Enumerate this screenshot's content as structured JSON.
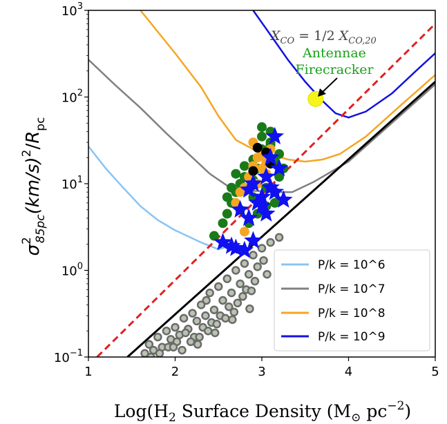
{
  "chart_data": {
    "type": "scatter",
    "xscale": "linear",
    "yscale": "log",
    "xlim": [
      1,
      5
    ],
    "ylim": [
      0.1,
      1000
    ],
    "xticks": [
      {
        "value": 1,
        "label": "1"
      },
      {
        "value": 2,
        "label": "2"
      },
      {
        "value": 3,
        "label": "3"
      },
      {
        "value": 4,
        "label": "4"
      },
      {
        "value": 5,
        "label": "5"
      }
    ],
    "yticks": [
      {
        "value": 0.1,
        "base": "10",
        "exp": "−1"
      },
      {
        "value": 1,
        "base": "10",
        "exp": "0"
      },
      {
        "value": 10,
        "base": "10",
        "exp": "1"
      },
      {
        "value": 100,
        "base": "10",
        "exp": "2"
      },
      {
        "value": 1000,
        "base": "10",
        "exp": "3"
      }
    ],
    "xlabel": {
      "pre": "Log(H",
      "sub1": "2",
      "mid": " Surface Density (M",
      "sub2": "⊙",
      "mid2": " pc",
      "sup": "−2",
      "post": ")"
    },
    "ylabel": {
      "sigma": "σ",
      "sup": "2",
      "sub": "85pc",
      "mid": "(km/s)",
      "sup2": "2",
      "slash": "/",
      "R": "R",
      "rsub": "pc"
    },
    "legend": {
      "position": "lower-right",
      "entries": [
        {
          "label": "P/k = 10^6",
          "color": "#89c4f4"
        },
        {
          "label": "P/k = 10^7",
          "color": "#808080"
        },
        {
          "label": "P/k = 10^8",
          "color": "#f5a623"
        },
        {
          "label": "P/k = 10^9",
          "color": "#1212e0"
        }
      ]
    },
    "annotations": {
      "formula": "X_CO = 1/2 X_CO,20",
      "formula_parts": {
        "x": "X",
        "sub1": "CO",
        "eq": " = 1/2 ",
        "x2": "X",
        "sub2": "CO,20"
      },
      "label_line1": "Antennae",
      "label_line2": "Firecracker",
      "highlight_point": [
        3.62,
        95
      ]
    },
    "lines": {
      "black_fit": {
        "color": "#000000",
        "x": [
          1.45,
          5.0
        ],
        "y": [
          0.1,
          150
        ]
      },
      "red_dashed": {
        "color": "#e02020",
        "x": [
          1.1,
          5.0
        ],
        "y": [
          0.1,
          700
        ]
      }
    },
    "pressure_curves": [
      {
        "name": "P/k = 10^6",
        "color": "#89c4f4",
        "x": [
          1.0,
          1.2,
          1.4,
          1.6,
          1.8,
          2.0,
          2.05,
          2.3,
          2.5,
          2.7
        ],
        "y": [
          27,
          15,
          9,
          5.5,
          3.8,
          2.9,
          2.75,
          2.1,
          1.75,
          2.0
        ]
      },
      {
        "name": "P/k = 10^7",
        "color": "#808080",
        "x": [
          1.0,
          1.3,
          1.6,
          1.9,
          2.2,
          2.4,
          2.6,
          2.8,
          3.0,
          3.2,
          3.35,
          3.6,
          4.0,
          5.0
        ],
        "y": [
          270,
          140,
          75,
          38,
          20,
          13,
          9.5,
          8.3,
          8.2,
          8.0,
          8.0,
          10.5,
          18,
          140
        ]
      },
      {
        "name": "P/k = 10^8",
        "color": "#f5a623",
        "x": [
          1.6,
          2.0,
          2.3,
          2.5,
          2.7,
          2.9,
          3.1,
          3.3,
          3.5,
          3.7,
          3.9,
          4.2,
          4.6,
          5.0
        ],
        "y": [
          1000,
          320,
          130,
          60,
          32,
          25,
          22,
          19,
          18,
          19,
          22,
          35,
          80,
          180
        ]
      },
      {
        "name": "P/k = 10^9",
        "color": "#1212e0",
        "x": [
          2.9,
          3.1,
          3.3,
          3.5,
          3.7,
          3.85,
          4.0,
          4.2,
          4.5,
          4.8,
          5.0
        ],
        "y": [
          1000,
          520,
          270,
          150,
          90,
          65,
          58,
          68,
          110,
          210,
          320
        ]
      }
    ],
    "series": [
      {
        "name": "",
        "marker": "circle-outlined",
        "color": "#b8c4b0",
        "edge": "#6a6a6a",
        "x": [
          1.65,
          1.7,
          1.75,
          1.8,
          1.85,
          1.9,
          1.95,
          2.0,
          2.05,
          2.1,
          2.15,
          2.2,
          2.25,
          2.3,
          2.35,
          2.4,
          2.45,
          2.5,
          2.55,
          2.6,
          2.65,
          2.7,
          2.75,
          2.8,
          2.85,
          2.9,
          2.95,
          3.0,
          3.1,
          3.2,
          1.72,
          1.82,
          1.92,
          2.02,
          2.12,
          2.22,
          2.32,
          2.42,
          2.52,
          2.62,
          2.72,
          2.82,
          2.92,
          3.02,
          2.08,
          2.18,
          2.28,
          2.38,
          2.48,
          2.58,
          2.68,
          2.78,
          2.88,
          1.98,
          2.26,
          2.46,
          2.66,
          2.86,
          3.06,
          2.36
        ],
        "y": [
          0.11,
          0.14,
          0.12,
          0.17,
          0.13,
          0.2,
          0.16,
          0.22,
          0.18,
          0.28,
          0.21,
          0.32,
          0.26,
          0.4,
          0.3,
          0.55,
          0.35,
          0.65,
          0.45,
          0.8,
          0.55,
          1.0,
          0.7,
          1.2,
          0.9,
          1.5,
          1.1,
          1.8,
          2.1,
          2.4,
          0.1,
          0.11,
          0.13,
          0.15,
          0.19,
          0.17,
          0.22,
          0.25,
          0.3,
          0.38,
          0.42,
          0.6,
          0.75,
          1.3,
          0.12,
          0.15,
          0.17,
          0.2,
          0.24,
          0.28,
          0.33,
          0.5,
          0.58,
          0.13,
          0.14,
          0.19,
          0.27,
          0.36,
          0.9,
          0.45
        ]
      },
      {
        "name": "",
        "marker": "circle",
        "color": "#1a7a1a",
        "x": [
          2.45,
          2.55,
          2.6,
          2.65,
          2.7,
          2.75,
          2.8,
          2.85,
          2.9,
          2.95,
          3.0,
          3.05,
          3.1,
          3.15,
          3.2,
          2.75,
          2.85,
          2.95,
          3.05,
          3.15,
          2.7,
          2.8,
          2.9,
          3.0,
          3.1,
          3.2,
          3.25,
          2.6,
          2.65,
          3.0,
          3.1,
          2.9,
          3.05,
          3.15,
          2.95
        ],
        "y": [
          2.5,
          3.5,
          4.5,
          6,
          8,
          10,
          12,
          9,
          7,
          15,
          25,
          20,
          30,
          18,
          12,
          5,
          3.5,
          4.5,
          5.5,
          8,
          13,
          16,
          11,
          35,
          40,
          22,
          15,
          7,
          9,
          45,
          28,
          19,
          9,
          6,
          6.5
        ]
      },
      {
        "name": "",
        "marker": "circle",
        "color": "#f5a623",
        "x": [
          2.8,
          2.85,
          2.9,
          2.95,
          3.0,
          3.05,
          3.1,
          2.7,
          2.75,
          2.9,
          3.0,
          2.95,
          3.05,
          2.8
        ],
        "y": [
          9,
          12,
          16,
          20,
          22,
          18,
          25,
          6,
          8,
          30,
          15,
          10,
          13,
          2.8
        ]
      },
      {
        "name": "",
        "marker": "circle",
        "color": "#000000",
        "x": [
          2.95,
          3.05,
          3.1,
          2.9
        ],
        "y": [
          26,
          23,
          17,
          14
        ]
      },
      {
        "name": "",
        "marker": "star",
        "color": "#1010f0",
        "x": [
          2.55,
          2.7,
          2.75,
          2.85,
          2.9,
          2.95,
          3.0,
          3.05,
          3.1,
          3.15,
          3.2,
          3.25,
          2.8,
          2.9,
          3.0,
          3.1,
          3.15,
          2.65,
          2.85,
          3.05
        ],
        "y": [
          2.1,
          1.8,
          5,
          4,
          2.2,
          6,
          5.5,
          4.5,
          9,
          8,
          15,
          6.5,
          1.7,
          10,
          7,
          20,
          35,
          1.9,
          8.5,
          12
        ]
      }
    ]
  }
}
